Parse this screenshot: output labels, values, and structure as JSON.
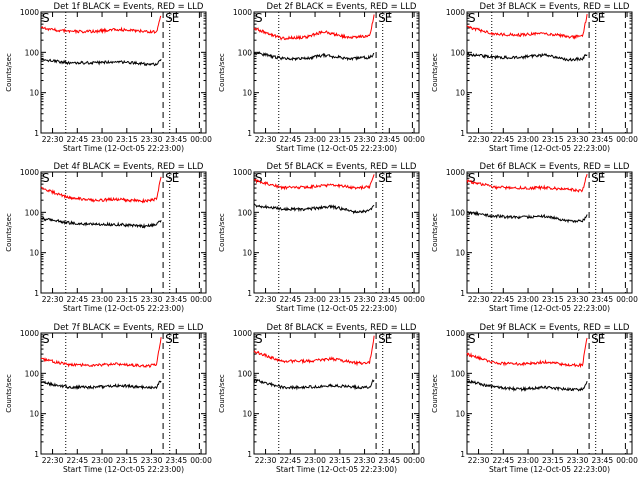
{
  "chart_data": [
    {
      "type": "line",
      "title": "Det 1f BLACK = Events, RED = LLD",
      "xlabel": "Start Time (12-Oct-05 22:23:00)",
      "ylabel": "Counts/sec",
      "xticks": [
        "22:30",
        "22:45",
        "23:00",
        "23:15",
        "23:30",
        "23:45",
        "00:00"
      ],
      "yticks": [
        "1",
        "10",
        "100",
        "1000"
      ],
      "ylim": [
        1,
        1000
      ],
      "y_scale": "log",
      "x_markers": [
        {
          "label": "S",
          "time": "23:37",
          "style": "dashed"
        },
        {
          "label": "E",
          "time": "23:41",
          "style": "dotted"
        },
        {
          "label": "",
          "time": "22:38",
          "style": "dotted"
        },
        {
          "label": "",
          "time": "23:59",
          "style": "dashed"
        }
      ],
      "series": [
        {
          "name": "Events",
          "color": "#000000",
          "x": [
            "22:23",
            "22:40",
            "22:55",
            "23:10",
            "23:25",
            "23:33",
            "23:36"
          ],
          "y": [
            65,
            55,
            55,
            58,
            52,
            50,
            65
          ]
        },
        {
          "name": "LLD",
          "color": "#ff0000",
          "x": [
            "22:23",
            "22:40",
            "22:55",
            "23:10",
            "23:25",
            "23:33",
            "23:36"
          ],
          "y": [
            400,
            330,
            330,
            370,
            330,
            320,
            900
          ]
        }
      ]
    },
    {
      "type": "line",
      "title": "Det 2f BLACK = Events, RED = LLD",
      "xlabel": "Start Time (12-Oct-05 22:23:00)",
      "ylabel": "Counts/sec",
      "xticks": [
        "22:30",
        "22:45",
        "23:00",
        "23:15",
        "23:30",
        "23:45",
        "00:00"
      ],
      "yticks": [
        "1",
        "10",
        "100",
        "1000"
      ],
      "ylim": [
        1,
        1000
      ],
      "y_scale": "log",
      "x_markers": [
        {
          "label": "S",
          "time": "23:37",
          "style": "dashed"
        },
        {
          "label": "E",
          "time": "23:41",
          "style": "dotted"
        },
        {
          "label": "",
          "time": "22:38",
          "style": "dotted"
        },
        {
          "label": "",
          "time": "23:59",
          "style": "dashed"
        }
      ],
      "series": [
        {
          "name": "Events",
          "color": "#000000",
          "x": [
            "22:23",
            "22:40",
            "22:55",
            "23:05",
            "23:20",
            "23:33",
            "23:36"
          ],
          "y": [
            100,
            70,
            70,
            85,
            70,
            75,
            90
          ]
        },
        {
          "name": "LLD",
          "color": "#ff0000",
          "x": [
            "22:23",
            "22:40",
            "22:55",
            "23:05",
            "23:20",
            "23:33",
            "23:36"
          ],
          "y": [
            400,
            220,
            240,
            330,
            230,
            250,
            900
          ]
        }
      ]
    },
    {
      "type": "line",
      "title": "Det 3f BLACK = Events, RED = LLD",
      "xlabel": "Start Time (12-Oct-05 22:23:00)",
      "ylabel": "Counts/sec",
      "xticks": [
        "22:30",
        "22:45",
        "23:00",
        "23:15",
        "23:30",
        "23:45",
        "00:00"
      ],
      "yticks": [
        "1",
        "10",
        "100",
        "1000"
      ],
      "ylim": [
        1,
        1000
      ],
      "y_scale": "log",
      "x_markers": [
        {
          "label": "S",
          "time": "23:37",
          "style": "dashed"
        },
        {
          "label": "E",
          "time": "23:41",
          "style": "dotted"
        },
        {
          "label": "",
          "time": "22:38",
          "style": "dotted"
        },
        {
          "label": "",
          "time": "23:59",
          "style": "dashed"
        }
      ],
      "series": [
        {
          "name": "Events",
          "color": "#000000",
          "x": [
            "22:23",
            "22:40",
            "22:55",
            "23:10",
            "23:25",
            "23:33",
            "23:36"
          ],
          "y": [
            90,
            75,
            75,
            85,
            65,
            70,
            95
          ]
        },
        {
          "name": "LLD",
          "color": "#ff0000",
          "x": [
            "22:23",
            "22:40",
            "22:55",
            "23:10",
            "23:25",
            "23:33",
            "23:36"
          ],
          "y": [
            430,
            280,
            270,
            300,
            240,
            250,
            900
          ]
        }
      ]
    },
    {
      "type": "line",
      "title": "Det 4f BLACK = Events, RED = LLD",
      "xlabel": "Start Time (12-Oct-05 22:23:00)",
      "ylabel": "Counts/sec",
      "xticks": [
        "22:30",
        "22:45",
        "23:00",
        "23:15",
        "23:30",
        "23:45",
        "00:00"
      ],
      "yticks": [
        "1",
        "10",
        "100",
        "1000"
      ],
      "ylim": [
        1,
        1000
      ],
      "y_scale": "log",
      "x_markers": [
        {
          "label": "S",
          "time": "23:37",
          "style": "dashed"
        },
        {
          "label": "E",
          "time": "23:41",
          "style": "dotted"
        },
        {
          "label": "",
          "time": "22:38",
          "style": "dotted"
        },
        {
          "label": "",
          "time": "23:59",
          "style": "dashed"
        }
      ],
      "series": [
        {
          "name": "Events",
          "color": "#000000",
          "x": [
            "22:23",
            "22:40",
            "22:55",
            "23:10",
            "23:25",
            "23:33",
            "23:36"
          ],
          "y": [
            70,
            55,
            50,
            50,
            45,
            50,
            65
          ]
        },
        {
          "name": "LLD",
          "color": "#ff0000",
          "x": [
            "22:23",
            "22:40",
            "22:55",
            "23:10",
            "23:25",
            "23:33",
            "23:36"
          ],
          "y": [
            400,
            230,
            200,
            210,
            190,
            210,
            900
          ]
        }
      ]
    },
    {
      "type": "line",
      "title": "Det 5f BLACK = Events, RED = LLD",
      "xlabel": "Start Time (12-Oct-05 22:23:00)",
      "ylabel": "Counts/sec",
      "xticks": [
        "22:30",
        "22:45",
        "23:00",
        "23:15",
        "23:30",
        "23:45",
        "00:00"
      ],
      "yticks": [
        "1",
        "10",
        "100",
        "1000"
      ],
      "ylim": [
        1,
        1000
      ],
      "y_scale": "log",
      "x_markers": [
        {
          "label": "S",
          "time": "23:37",
          "style": "dashed"
        },
        {
          "label": "E",
          "time": "23:41",
          "style": "dotted"
        },
        {
          "label": "",
          "time": "22:38",
          "style": "dotted"
        },
        {
          "label": "",
          "time": "23:59",
          "style": "dashed"
        }
      ],
      "series": [
        {
          "name": "Events",
          "color": "#000000",
          "x": [
            "22:23",
            "22:40",
            "22:55",
            "23:10",
            "23:25",
            "23:33",
            "23:36"
          ],
          "y": [
            150,
            120,
            120,
            140,
            100,
            110,
            145
          ]
        },
        {
          "name": "LLD",
          "color": "#ff0000",
          "x": [
            "22:23",
            "22:40",
            "22:55",
            "23:10",
            "23:25",
            "23:33",
            "23:36"
          ],
          "y": [
            620,
            410,
            420,
            480,
            400,
            430,
            1000
          ]
        }
      ]
    },
    {
      "type": "line",
      "title": "Det 6f BLACK = Events, RED = LLD",
      "xlabel": "Start Time (12-Oct-05 22:23:00)",
      "ylabel": "Counts/sec",
      "xticks": [
        "22:30",
        "22:45",
        "23:00",
        "23:15",
        "23:30",
        "23:45",
        "00:00"
      ],
      "yticks": [
        "1",
        "10",
        "100",
        "1000"
      ],
      "ylim": [
        1,
        1000
      ],
      "y_scale": "log",
      "x_markers": [
        {
          "label": "S",
          "time": "23:37",
          "style": "dashed"
        },
        {
          "label": "E",
          "time": "23:41",
          "style": "dotted"
        },
        {
          "label": "",
          "time": "22:38",
          "style": "dotted"
        },
        {
          "label": "",
          "time": "23:59",
          "style": "dashed"
        }
      ],
      "series": [
        {
          "name": "Events",
          "color": "#000000",
          "x": [
            "22:23",
            "22:40",
            "22:55",
            "23:10",
            "23:25",
            "23:33",
            "23:36"
          ],
          "y": [
            100,
            80,
            75,
            80,
            60,
            60,
            85
          ]
        },
        {
          "name": "LLD",
          "color": "#ff0000",
          "x": [
            "22:23",
            "22:40",
            "22:55",
            "23:10",
            "23:25",
            "23:33",
            "23:36"
          ],
          "y": [
            600,
            420,
            400,
            410,
            370,
            340,
            1000
          ]
        }
      ]
    },
    {
      "type": "line",
      "title": "Det 7f BLACK = Events, RED = LLD",
      "xlabel": "Start Time (12-Oct-05 22:23:00)",
      "ylabel": "Counts/sec",
      "xticks": [
        "22:30",
        "22:45",
        "23:00",
        "23:15",
        "23:30",
        "23:45",
        "00:00"
      ],
      "yticks": [
        "1",
        "10",
        "100",
        "1000"
      ],
      "ylim": [
        1,
        1000
      ],
      "y_scale": "log",
      "x_markers": [
        {
          "label": "S",
          "time": "23:37",
          "style": "dashed"
        },
        {
          "label": "E",
          "time": "23:41",
          "style": "dotted"
        },
        {
          "label": "",
          "time": "22:38",
          "style": "dotted"
        },
        {
          "label": "",
          "time": "23:59",
          "style": "dashed"
        }
      ],
      "series": [
        {
          "name": "Events",
          "color": "#000000",
          "x": [
            "22:23",
            "22:40",
            "22:55",
            "23:10",
            "23:25",
            "23:33",
            "23:36"
          ],
          "y": [
            60,
            45,
            45,
            50,
            45,
            45,
            70
          ]
        },
        {
          "name": "LLD",
          "color": "#ff0000",
          "x": [
            "22:23",
            "22:40",
            "22:55",
            "23:10",
            "23:25",
            "23:33",
            "23:36"
          ],
          "y": [
            230,
            160,
            160,
            170,
            150,
            160,
            900
          ]
        }
      ]
    },
    {
      "type": "line",
      "title": "Det 8f BLACK = Events, RED = LLD",
      "xlabel": "Start Time (12-Oct-05 22:23:00)",
      "ylabel": "Counts/sec",
      "xticks": [
        "22:30",
        "22:45",
        "23:00",
        "23:15",
        "23:30",
        "23:45",
        "00:00"
      ],
      "yticks": [
        "1",
        "10",
        "100",
        "1000"
      ],
      "ylim": [
        1,
        1000
      ],
      "y_scale": "log",
      "x_markers": [
        {
          "label": "S",
          "time": "23:37",
          "style": "dashed"
        },
        {
          "label": "E",
          "time": "23:41",
          "style": "dotted"
        },
        {
          "label": "",
          "time": "22:38",
          "style": "dotted"
        },
        {
          "label": "",
          "time": "23:59",
          "style": "dashed"
        }
      ],
      "series": [
        {
          "name": "Events",
          "color": "#000000",
          "x": [
            "22:23",
            "22:40",
            "22:55",
            "23:10",
            "23:25",
            "23:33",
            "23:36"
          ],
          "y": [
            70,
            45,
            45,
            50,
            45,
            45,
            75
          ]
        },
        {
          "name": "LLD",
          "color": "#ff0000",
          "x": [
            "22:23",
            "22:40",
            "22:55",
            "23:10",
            "23:25",
            "23:33",
            "23:36"
          ],
          "y": [
            350,
            200,
            200,
            230,
            180,
            180,
            900
          ]
        }
      ]
    },
    {
      "type": "line",
      "title": "Det 9f BLACK = Events, RED = LLD",
      "xlabel": "Start Time (12-Oct-05 22:23:00)",
      "ylabel": "Counts/sec",
      "xticks": [
        "22:30",
        "22:45",
        "23:00",
        "23:15",
        "23:30",
        "23:45",
        "00:00"
      ],
      "yticks": [
        "1",
        "10",
        "100",
        "1000"
      ],
      "ylim": [
        1,
        1000
      ],
      "y_scale": "log",
      "x_markers": [
        {
          "label": "S",
          "time": "23:37",
          "style": "dashed"
        },
        {
          "label": "E",
          "time": "23:41",
          "style": "dotted"
        },
        {
          "label": "",
          "time": "22:38",
          "style": "dotted"
        },
        {
          "label": "",
          "time": "23:59",
          "style": "dashed"
        }
      ],
      "series": [
        {
          "name": "Events",
          "color": "#000000",
          "x": [
            "22:23",
            "22:40",
            "22:55",
            "23:10",
            "23:25",
            "23:33",
            "23:36"
          ],
          "y": [
            65,
            45,
            40,
            45,
            40,
            40,
            65
          ]
        },
        {
          "name": "LLD",
          "color": "#ff0000",
          "x": [
            "22:23",
            "22:40",
            "22:55",
            "23:10",
            "23:25",
            "23:33",
            "23:36"
          ],
          "y": [
            300,
            180,
            170,
            190,
            160,
            160,
            900
          ]
        }
      ]
    }
  ]
}
